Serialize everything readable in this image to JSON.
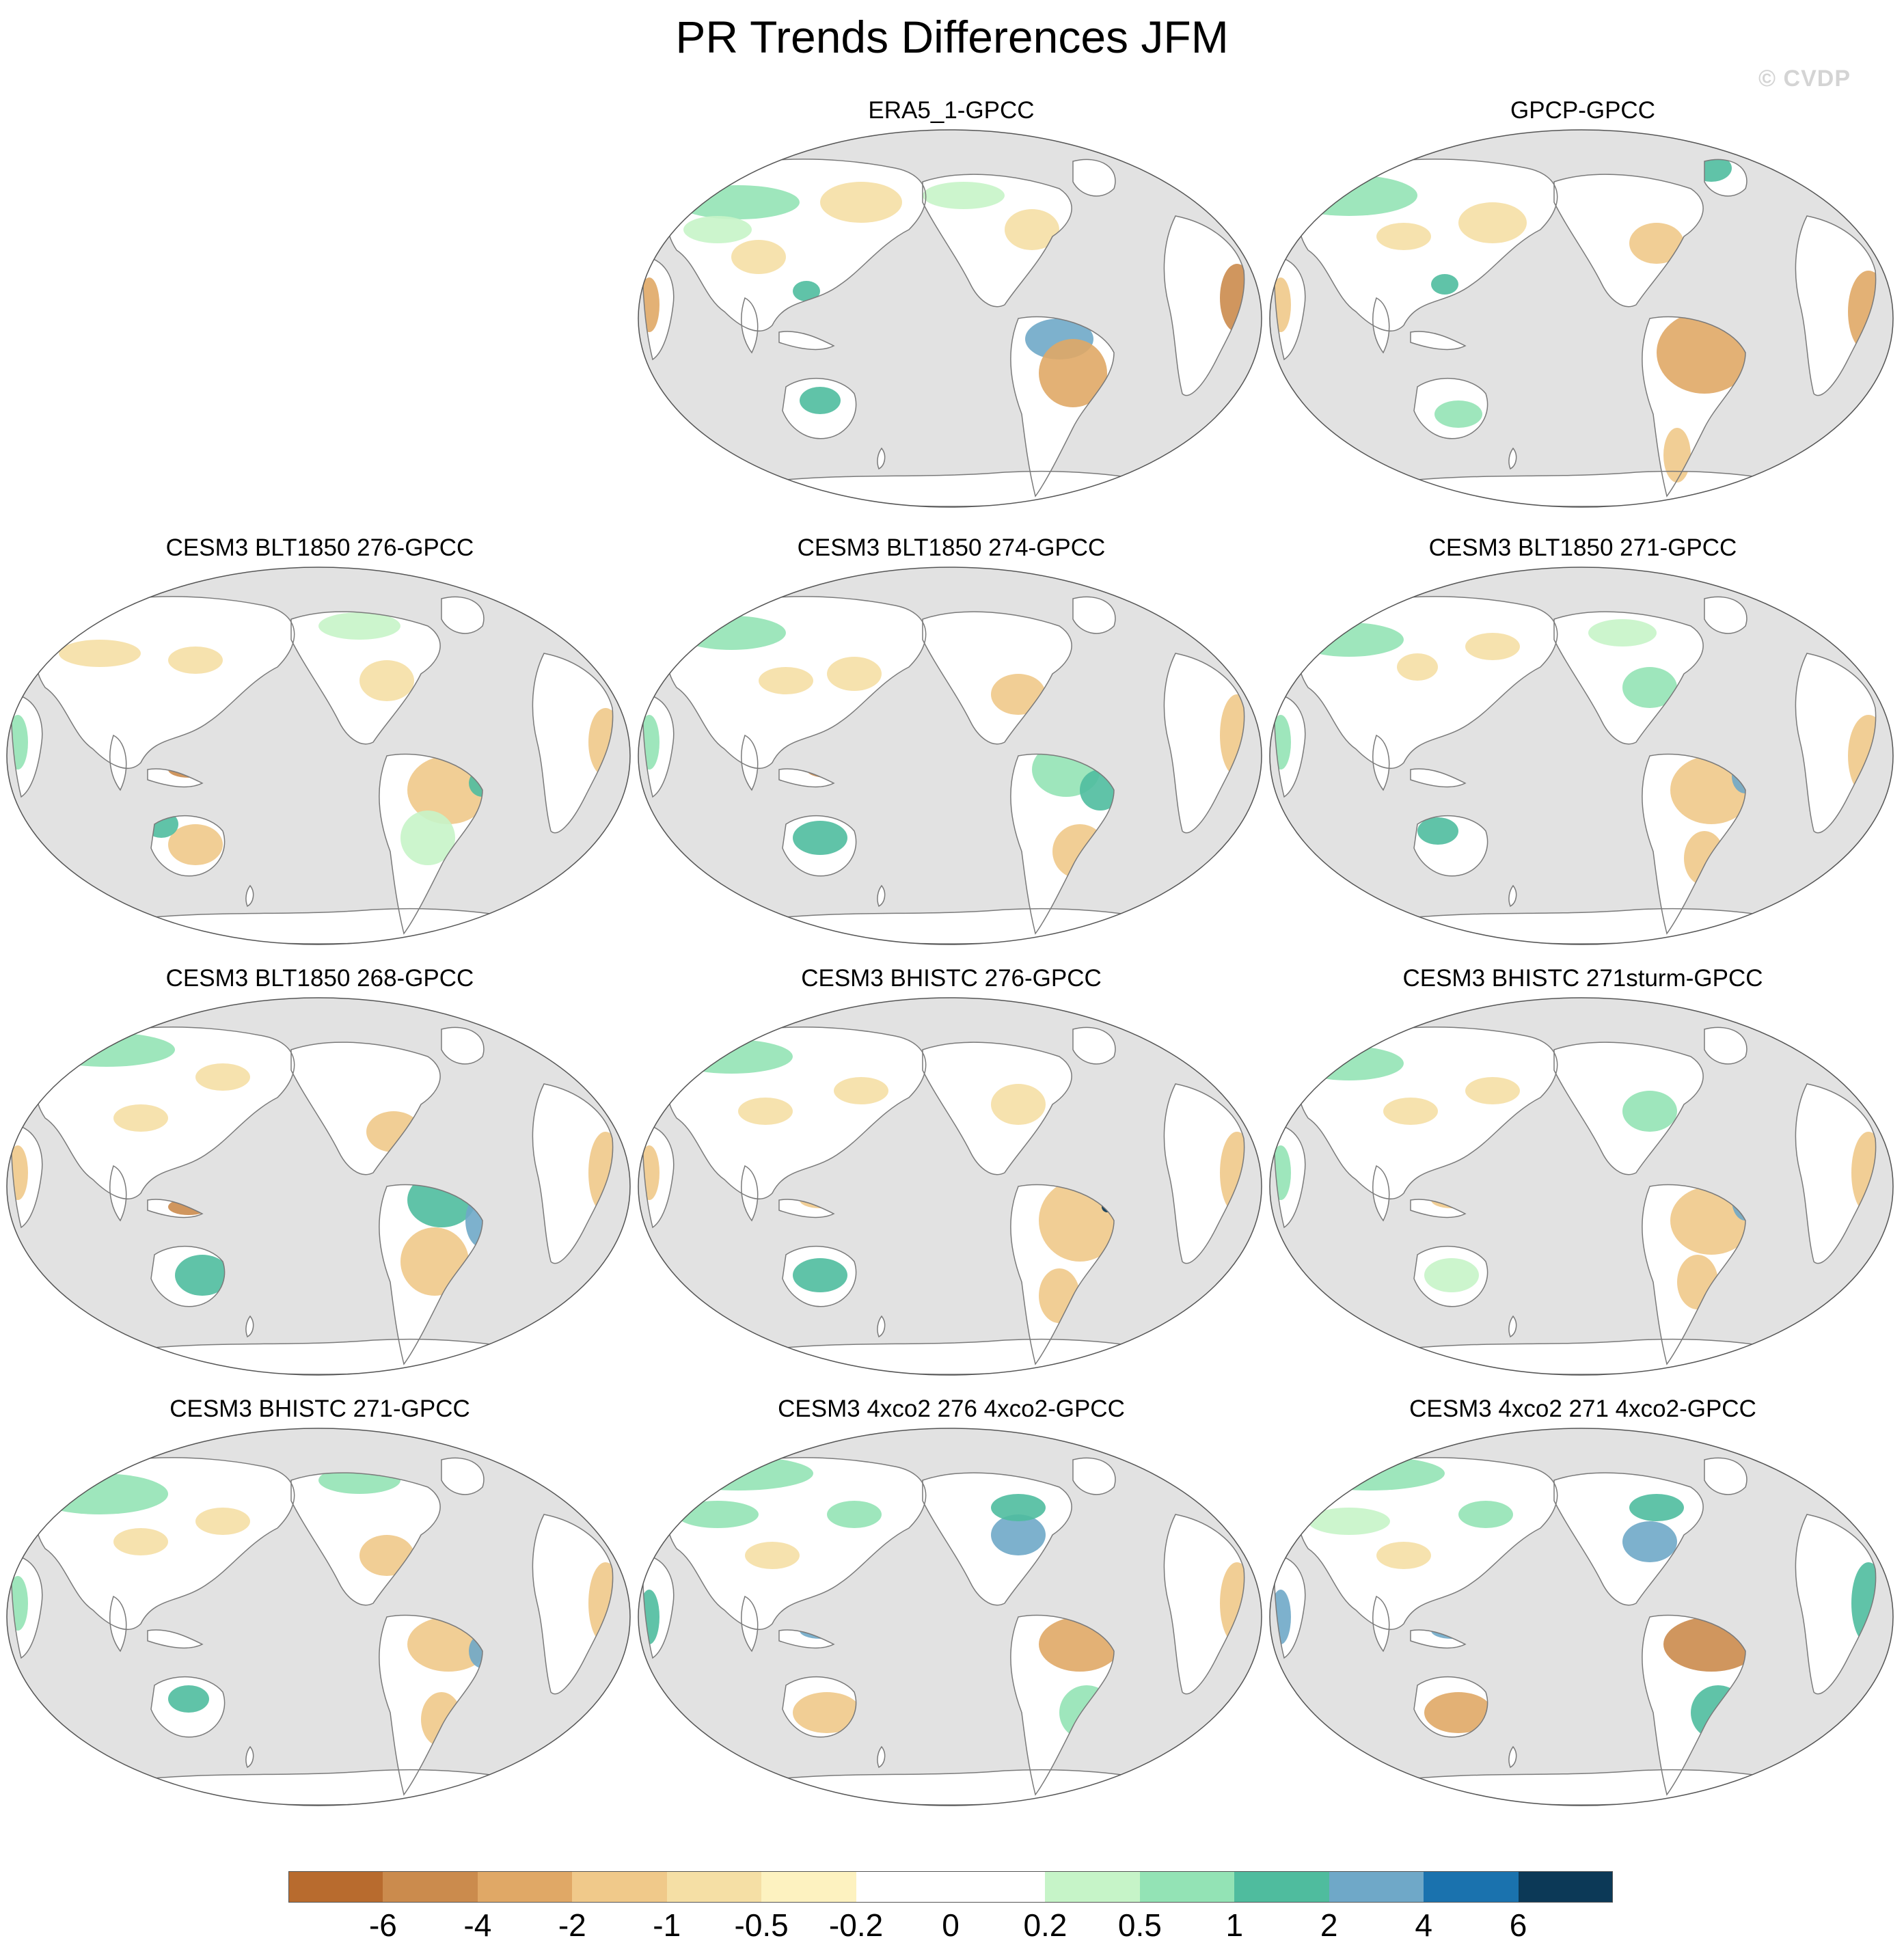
{
  "title": "PR Trends Differences JFM",
  "watermark": "© CVDP",
  "colors": {
    "ocean": "#e2e2e2",
    "land": "#ffffff",
    "coast": "#7a7a7a"
  },
  "colorbar": {
    "colors": [
      "#b86b2e",
      "#cb8b4d",
      "#e0a866",
      "#f0c98a",
      "#f5dfa5",
      "#fdf2c0",
      "#ffffff",
      "#ffffff",
      "#c6f4c8",
      "#93e3b5",
      "#4fbc9e",
      "#6fa8c8",
      "#1a72ae",
      "#0c3957"
    ],
    "labels": [
      "-6",
      "-4",
      "-2",
      "-1",
      "-0.5",
      "-0.2",
      "0",
      "0.2",
      "0.5",
      "1",
      "2",
      "4",
      "6"
    ]
  },
  "panels": [
    {
      "title": "ERA5_1-GPCC",
      "row": 0,
      "col": 1
    },
    {
      "title": "GPCP-GPCC",
      "row": 0,
      "col": 2
    },
    {
      "title": "CESM3 BLT1850 276-GPCC",
      "row": 1,
      "col": 0
    },
    {
      "title": "CESM3 BLT1850 274-GPCC",
      "row": 1,
      "col": 1
    },
    {
      "title": "CESM3 BLT1850 271-GPCC",
      "row": 1,
      "col": 2
    },
    {
      "title": "CESM3 BLT1850 268-GPCC",
      "row": 2,
      "col": 0
    },
    {
      "title": "CESM3 BHISTC 276-GPCC",
      "row": 2,
      "col": 1
    },
    {
      "title": "CESM3 BHISTC 271sturm-GPCC",
      "row": 2,
      "col": 2
    },
    {
      "title": "CESM3 BHISTC 271-GPCC",
      "row": 3,
      "col": 0
    },
    {
      "title": "CESM3 4xco2 276 4xco2-GPCC",
      "row": 3,
      "col": 1
    },
    {
      "title": "CESM3 4xco2 271 4xco2-GPCC",
      "row": 3,
      "col": 2
    }
  ]
}
